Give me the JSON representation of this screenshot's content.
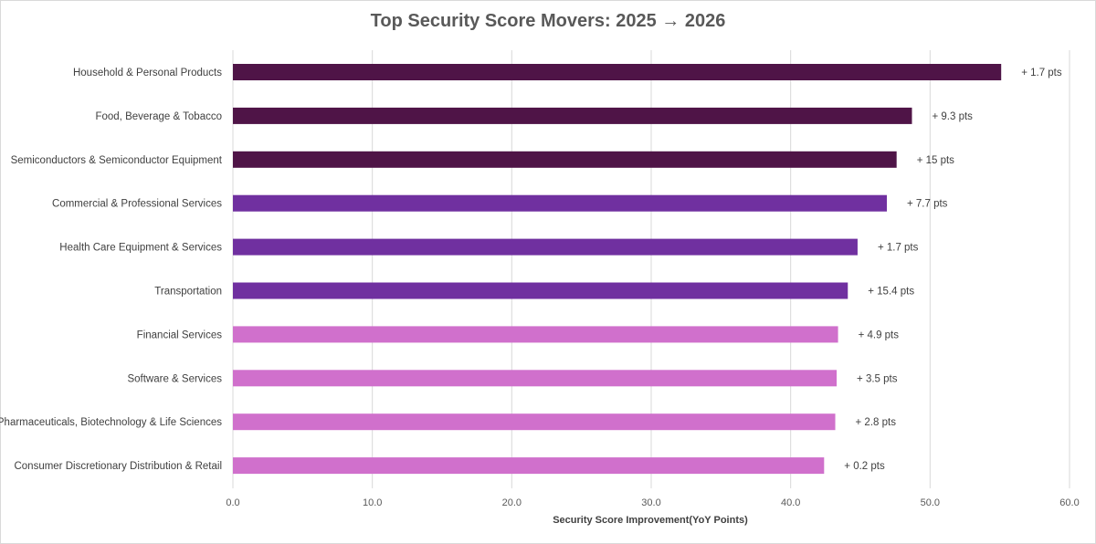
{
  "chart_data": {
    "type": "bar",
    "orientation": "horizontal",
    "title": "Top Security Score Movers: 2025 → 2026",
    "xlabel": "Security Score Improvement(YoY Points)",
    "ylabel": "",
    "xlim": [
      0,
      60
    ],
    "xticks": [
      "0.0",
      "10.0",
      "20.0",
      "30.0",
      "40.0",
      "50.0",
      "60.0"
    ],
    "grid": "vertical",
    "categories": [
      "Household & Personal Products",
      "Food, Beverage & Tobacco",
      "Semiconductors & Semiconductor Equipment",
      "Commercial & Professional Services",
      "Health Care Equipment & Services",
      "Transportation",
      "Financial Services",
      "Software & Services",
      "Pharmaceuticals, Biotechnology & Life Sciences",
      "Consumer Discretionary Distribution & Retail"
    ],
    "values": [
      55.1,
      48.7,
      47.6,
      46.9,
      44.8,
      44.1,
      43.4,
      43.3,
      43.2,
      42.4
    ],
    "data_labels": [
      "+ 1.7 pts",
      "+ 9.3 pts",
      "+ 15 pts",
      "+ 7.7 pts",
      "+ 1.7 pts",
      "+ 15.4 pts",
      "+ 4.9 pts",
      "+ 3.5 pts",
      "+ 2.8 pts",
      "+ 0.2 pts"
    ],
    "colors": [
      "#4f1447",
      "#4f1447",
      "#4f1447",
      "#7030a0",
      "#7030a0",
      "#7030a0",
      "#d070cc",
      "#d070cc",
      "#d070cc",
      "#d070cc"
    ]
  }
}
